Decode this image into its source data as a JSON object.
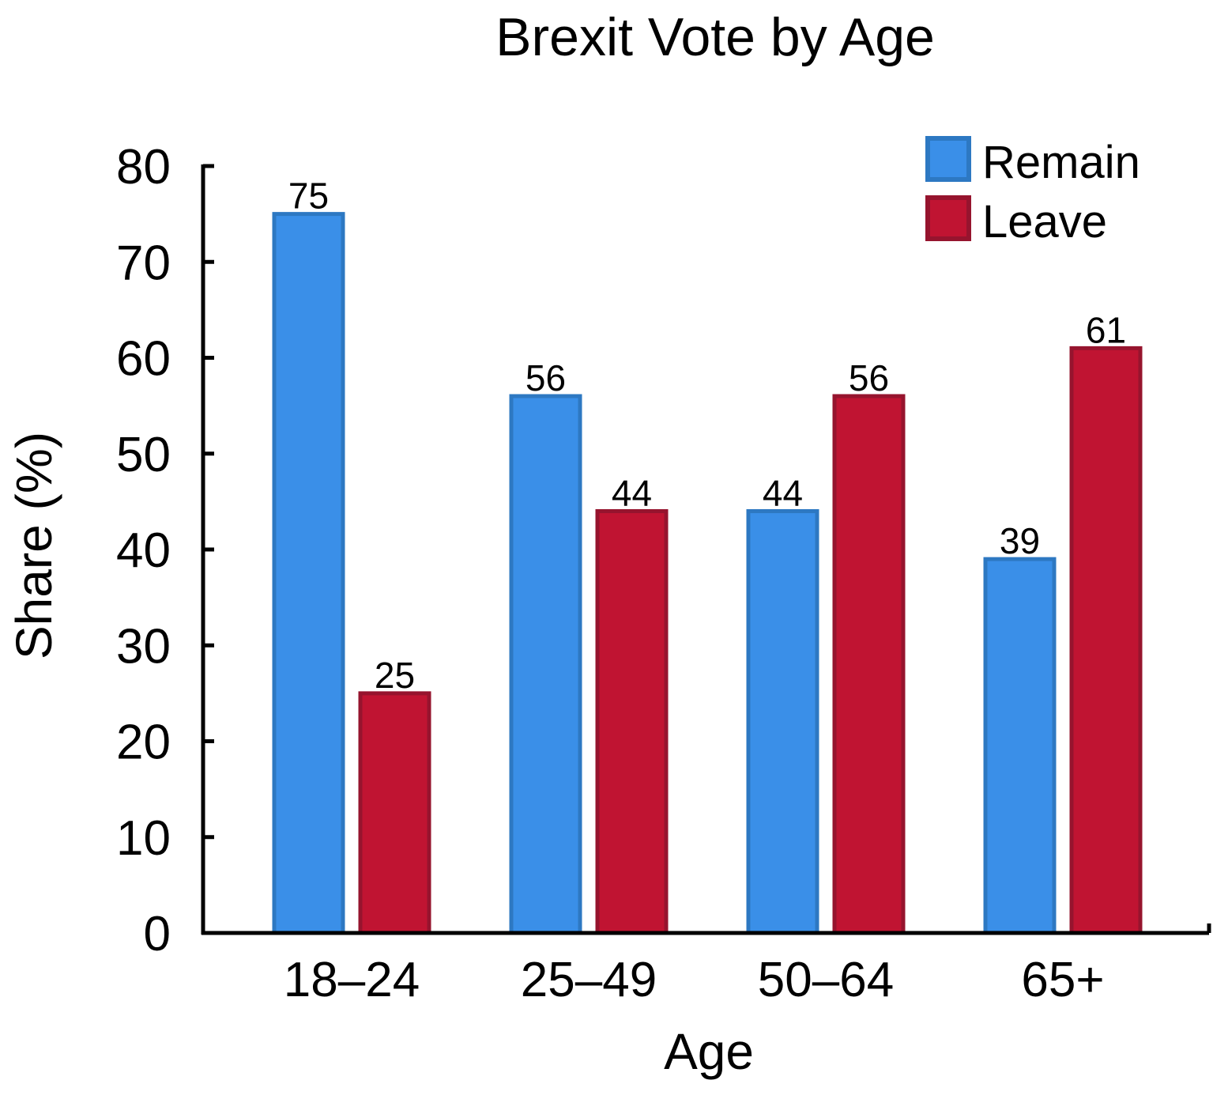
{
  "chart_data": {
    "type": "bar",
    "title": "Brexit Vote by Age",
    "xlabel": "Age",
    "ylabel": "Share (%)",
    "ylim": [
      0,
      80
    ],
    "yticks": [
      0,
      10,
      20,
      30,
      40,
      50,
      60,
      70,
      80
    ],
    "categories": [
      "18–24",
      "25–49",
      "50–64",
      "65+"
    ],
    "series": [
      {
        "name": "Remain",
        "values": [
          75,
          56,
          44,
          39
        ],
        "color": "#3a8fe8",
        "edge": "#2d78c2"
      },
      {
        "name": "Leave",
        "values": [
          25,
          44,
          56,
          61
        ],
        "color": "#c01432",
        "edge": "#96142e"
      }
    ],
    "data_labels": true,
    "legend": "top-right",
    "grid": false
  }
}
